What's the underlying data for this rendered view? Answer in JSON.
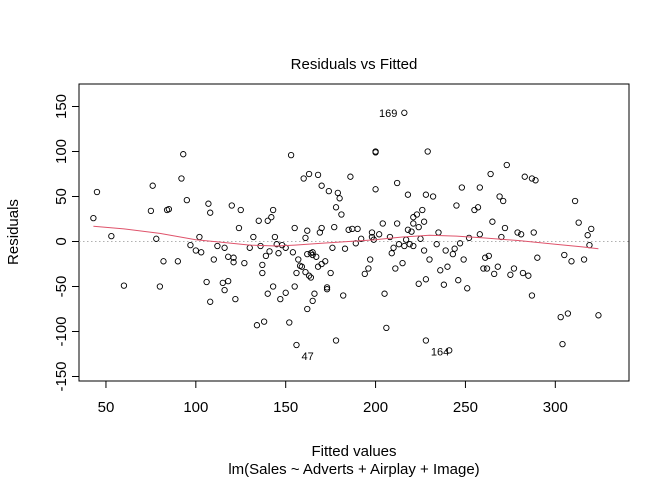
{
  "chart_data": {
    "type": "scatter",
    "title": "Residuals vs Fitted",
    "xlabel": "Fitted values",
    "xlabel_sub": "lm(Sales ~ Adverts + Airplay + Image)",
    "ylabel": "Residuals",
    "xlim": [
      35,
      341
    ],
    "ylim": [
      -155,
      175
    ],
    "xticks": [
      50,
      100,
      150,
      200,
      250,
      300
    ],
    "yticks": [
      -150,
      -100,
      -50,
      0,
      50,
      100,
      150
    ],
    "grid": false,
    "zero_line": {
      "y": 0,
      "color": "#b0b0b0",
      "style": "dotted"
    },
    "point_color": "#000000",
    "smooth_color": "#df536b",
    "points": [
      [
        43,
        26
      ],
      [
        45,
        55
      ],
      [
        53,
        6
      ],
      [
        60,
        -49
      ],
      [
        75,
        34
      ],
      [
        76,
        62
      ],
      [
        78,
        3
      ],
      [
        80,
        -50
      ],
      [
        82,
        -22
      ],
      [
        84,
        35
      ],
      [
        85,
        36
      ],
      [
        90,
        -22
      ],
      [
        93,
        97
      ],
      [
        92,
        70
      ],
      [
        95,
        46
      ],
      [
        97,
        -4
      ],
      [
        100,
        -10
      ],
      [
        102,
        5
      ],
      [
        103,
        -12
      ],
      [
        106,
        -45
      ],
      [
        107,
        42
      ],
      [
        108,
        32
      ],
      [
        108,
        -67
      ],
      [
        110,
        -20
      ],
      [
        112,
        -5
      ],
      [
        115,
        -46
      ],
      [
        116,
        -7
      ],
      [
        116,
        -54
      ],
      [
        118,
        -44
      ],
      [
        118,
        -17
      ],
      [
        120,
        40
      ],
      [
        121,
        -18
      ],
      [
        121,
        -23
      ],
      [
        122,
        -64
      ],
      [
        124,
        15
      ],
      [
        125,
        35
      ],
      [
        127,
        -24
      ],
      [
        130,
        -7
      ],
      [
        132,
        5
      ],
      [
        134,
        -93
      ],
      [
        135,
        23
      ],
      [
        136,
        -5
      ],
      [
        137,
        -35
      ],
      [
        137,
        -26
      ],
      [
        138,
        -89
      ],
      [
        139,
        -16
      ],
      [
        140,
        -58
      ],
      [
        140,
        23
      ],
      [
        141,
        -11
      ],
      [
        142,
        27
      ],
      [
        143,
        -50
      ],
      [
        143,
        35
      ],
      [
        144,
        5
      ],
      [
        145,
        -3
      ],
      [
        146,
        -13
      ],
      [
        147,
        -64
      ],
      [
        148,
        -4
      ],
      [
        150,
        -7
      ],
      [
        150,
        -57
      ],
      [
        152,
        -90
      ],
      [
        153,
        96
      ],
      [
        154,
        -12
      ],
      [
        155,
        15
      ],
      [
        155,
        -50
      ],
      [
        156,
        -35
      ],
      [
        156,
        -115
      ],
      [
        157,
        -20
      ],
      [
        158,
        -27
      ],
      [
        159,
        -28
      ],
      [
        160,
        70
      ],
      [
        161,
        4
      ],
      [
        161,
        -34
      ],
      [
        162,
        -14
      ],
      [
        162,
        12
      ],
      [
        162,
        -75
      ],
      [
        163,
        75
      ],
      [
        163,
        -38
      ],
      [
        164,
        -13
      ],
      [
        164,
        -40
      ],
      [
        165,
        -12
      ],
      [
        165,
        -15
      ],
      [
        165,
        -66
      ],
      [
        166,
        -58
      ],
      [
        167,
        -17
      ],
      [
        168,
        74
      ],
      [
        168,
        -28
      ],
      [
        169,
        10
      ],
      [
        170,
        15
      ],
      [
        170,
        62
      ],
      [
        170,
        -25
      ],
      [
        172,
        -22
      ],
      [
        173,
        -53
      ],
      [
        173,
        -51
      ],
      [
        174,
        56
      ],
      [
        175,
        -35
      ],
      [
        176,
        -7
      ],
      [
        177,
        16
      ],
      [
        178,
        -110
      ],
      [
        178,
        38
      ],
      [
        179,
        54
      ],
      [
        180,
        48
      ],
      [
        181,
        30
      ],
      [
        182,
        -60
      ],
      [
        183,
        -8
      ],
      [
        185,
        13
      ],
      [
        186,
        72
      ],
      [
        187,
        14
      ],
      [
        189,
        -2
      ],
      [
        190,
        14
      ],
      [
        192,
        3
      ],
      [
        194,
        -36
      ],
      [
        196,
        -30
      ],
      [
        197,
        -20
      ],
      [
        198,
        5
      ],
      [
        198,
        10
      ],
      [
        199,
        2
      ],
      [
        200,
        58
      ],
      [
        200,
        100
      ],
      [
        200,
        99
      ],
      [
        202,
        8
      ],
      [
        204,
        20
      ],
      [
        205,
        -58
      ],
      [
        206,
        -96
      ],
      [
        208,
        5
      ],
      [
        209,
        -13
      ],
      [
        210,
        -7
      ],
      [
        211,
        -30
      ],
      [
        212,
        65
      ],
      [
        212,
        20
      ],
      [
        213,
        -3
      ],
      [
        215,
        -24
      ],
      [
        216,
        143
      ],
      [
        216,
        -5
      ],
      [
        217,
        2
      ],
      [
        218,
        13
      ],
      [
        218,
        52
      ],
      [
        219,
        -3
      ],
      [
        220,
        11
      ],
      [
        221,
        27
      ],
      [
        221,
        20
      ],
      [
        221,
        -5
      ],
      [
        223,
        30
      ],
      [
        224,
        -47
      ],
      [
        224,
        16
      ],
      [
        225,
        3
      ],
      [
        226,
        35
      ],
      [
        227,
        22
      ],
      [
        227,
        -10
      ],
      [
        228,
        52
      ],
      [
        228,
        -42
      ],
      [
        228,
        -110
      ],
      [
        229,
        100
      ],
      [
        230,
        -20
      ],
      [
        232,
        50
      ],
      [
        234,
        -3
      ],
      [
        235,
        10
      ],
      [
        236,
        -32
      ],
      [
        238,
        -48
      ],
      [
        239,
        -10
      ],
      [
        240,
        -28
      ],
      [
        241,
        -121
      ],
      [
        243,
        -14
      ],
      [
        244,
        -8
      ],
      [
        245,
        40
      ],
      [
        246,
        -43
      ],
      [
        247,
        -2
      ],
      [
        248,
        60
      ],
      [
        249,
        -20
      ],
      [
        251,
        -52
      ],
      [
        252,
        4
      ],
      [
        255,
        35
      ],
      [
        257,
        38
      ],
      [
        258,
        8
      ],
      [
        258,
        60
      ],
      [
        260,
        -30
      ],
      [
        261,
        -18
      ],
      [
        262,
        -30
      ],
      [
        263,
        -16
      ],
      [
        264,
        75
      ],
      [
        265,
        22
      ],
      [
        266,
        -36
      ],
      [
        268,
        -28
      ],
      [
        269,
        50
      ],
      [
        270,
        5
      ],
      [
        271,
        45
      ],
      [
        272,
        15
      ],
      [
        273,
        85
      ],
      [
        275,
        -37
      ],
      [
        277,
        -30
      ],
      [
        279,
        10
      ],
      [
        281,
        8
      ],
      [
        282,
        -35
      ],
      [
        283,
        72
      ],
      [
        285,
        -38
      ],
      [
        287,
        70
      ],
      [
        287,
        -60
      ],
      [
        288,
        10
      ],
      [
        289,
        68
      ],
      [
        290,
        -18
      ],
      [
        303,
        -84
      ],
      [
        304,
        -114
      ],
      [
        305,
        -15
      ],
      [
        307,
        -80
      ],
      [
        309,
        -22
      ],
      [
        311,
        45
      ],
      [
        313,
        21
      ],
      [
        316,
        -20
      ],
      [
        318,
        7
      ],
      [
        319,
        -4
      ],
      [
        320,
        14
      ],
      [
        324,
        -82
      ]
    ],
    "labeled_points": [
      {
        "label": "169",
        "x": 216,
        "y": 143
      },
      {
        "label": "47",
        "x": 156,
        "y": -115
      },
      {
        "label": "164",
        "x": 228,
        "y": -110
      }
    ],
    "smooth_line": [
      [
        43,
        17
      ],
      [
        60,
        14
      ],
      [
        80,
        9
      ],
      [
        100,
        2
      ],
      [
        115,
        -1
      ],
      [
        130,
        -4
      ],
      [
        145,
        -5
      ],
      [
        155,
        -4
      ],
      [
        170,
        -2
      ],
      [
        185,
        0
      ],
      [
        200,
        2
      ],
      [
        215,
        5
      ],
      [
        230,
        7
      ],
      [
        245,
        6
      ],
      [
        260,
        4
      ],
      [
        280,
        1
      ],
      [
        300,
        -3
      ],
      [
        315,
        -6
      ],
      [
        324,
        -8
      ]
    ]
  }
}
